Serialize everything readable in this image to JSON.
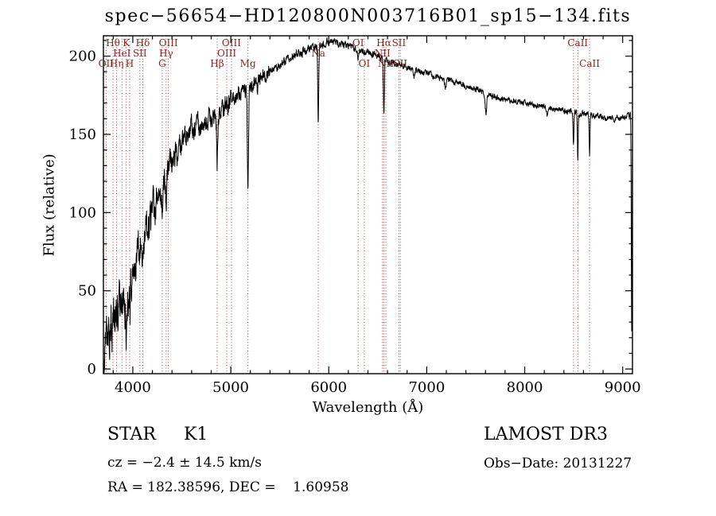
{
  "chart_data": {
    "type": "line",
    "title": "spec−56654−HD120800N003716B01_sp15−134.fits",
    "xlabel": "Wavelength (Å)",
    "ylabel": "Flux (relative)",
    "xlim": [
      3700,
      9100
    ],
    "ylim": [
      -3,
      213
    ],
    "xticks": [
      4000,
      5000,
      6000,
      7000,
      8000,
      9000
    ],
    "yticks": [
      0,
      50,
      100,
      150,
      200
    ],
    "x_minor_step": 200,
    "y_minor_step": 10,
    "grid": false,
    "legend": "none",
    "series_color": "#000000",
    "marker_color": "#a04040",
    "label_color": "#8b2323",
    "envelope": [
      [
        3700,
        6
      ],
      [
        3720,
        14
      ],
      [
        3740,
        22
      ],
      [
        3760,
        20
      ],
      [
        3780,
        26
      ],
      [
        3800,
        30
      ],
      [
        3820,
        34
      ],
      [
        3840,
        38
      ],
      [
        3860,
        40
      ],
      [
        3880,
        43
      ],
      [
        3900,
        47
      ],
      [
        3920,
        46
      ],
      [
        3950,
        44
      ],
      [
        3980,
        52
      ],
      [
        4000,
        62
      ],
      [
        4020,
        68
      ],
      [
        4040,
        72
      ],
      [
        4060,
        76
      ],
      [
        4080,
        79
      ],
      [
        4100,
        83
      ],
      [
        4130,
        88
      ],
      [
        4160,
        93
      ],
      [
        4200,
        99
      ],
      [
        4240,
        107
      ],
      [
        4280,
        114
      ],
      [
        4320,
        120
      ],
      [
        4360,
        127
      ],
      [
        4400,
        134
      ],
      [
        4440,
        139
      ],
      [
        4480,
        143
      ],
      [
        4520,
        147
      ],
      [
        4560,
        150
      ],
      [
        4600,
        152
      ],
      [
        4650,
        154
      ],
      [
        4700,
        156
      ],
      [
        4750,
        158
      ],
      [
        4800,
        161
      ],
      [
        4850,
        160
      ],
      [
        4900,
        164
      ],
      [
        4950,
        168
      ],
      [
        5000,
        171
      ],
      [
        5050,
        174
      ],
      [
        5100,
        176
      ],
      [
        5150,
        178
      ],
      [
        5200,
        180
      ],
      [
        5250,
        183
      ],
      [
        5300,
        186
      ],
      [
        5350,
        188
      ],
      [
        5400,
        190
      ],
      [
        5450,
        192
      ],
      [
        5500,
        194
      ],
      [
        5550,
        196
      ],
      [
        5600,
        198
      ],
      [
        5650,
        200
      ],
      [
        5700,
        202
      ],
      [
        5750,
        203
      ],
      [
        5800,
        205
      ],
      [
        5850,
        206
      ],
      [
        5900,
        207
      ],
      [
        5950,
        208
      ],
      [
        6000,
        209
      ],
      [
        6050,
        209
      ],
      [
        6100,
        208
      ],
      [
        6150,
        207
      ],
      [
        6200,
        206
      ],
      [
        6250,
        205
      ],
      [
        6300,
        204
      ],
      [
        6350,
        203
      ],
      [
        6400,
        202
      ],
      [
        6450,
        201
      ],
      [
        6500,
        200
      ],
      [
        6550,
        199
      ],
      [
        6600,
        197
      ],
      [
        6650,
        196
      ],
      [
        6700,
        195
      ],
      [
        6750,
        194
      ],
      [
        6800,
        193
      ],
      [
        6900,
        191
      ],
      [
        7000,
        189
      ],
      [
        7100,
        187
      ],
      [
        7200,
        185
      ],
      [
        7300,
        183
      ],
      [
        7400,
        181
      ],
      [
        7500,
        179
      ],
      [
        7600,
        176
      ],
      [
        7700,
        174
      ],
      [
        7800,
        172
      ],
      [
        7900,
        171
      ],
      [
        8000,
        170
      ],
      [
        8100,
        169
      ],
      [
        8200,
        168
      ],
      [
        8300,
        166
      ],
      [
        8400,
        165
      ],
      [
        8500,
        164
      ],
      [
        8600,
        163
      ],
      [
        8700,
        162
      ],
      [
        8800,
        161
      ],
      [
        8900,
        160
      ],
      [
        9000,
        161
      ],
      [
        9100,
        163
      ]
    ],
    "absorption_features": [
      {
        "center": 3933,
        "depth": 16,
        "sigma": 7
      },
      {
        "center": 3968,
        "depth": 14,
        "sigma": 7
      },
      {
        "center": 4102,
        "depth": 20,
        "sigma": 6
      },
      {
        "center": 4227,
        "depth": 8,
        "sigma": 4
      },
      {
        "center": 4300,
        "depth": 10,
        "sigma": 7
      },
      {
        "center": 4340,
        "depth": 16,
        "sigma": 5
      },
      {
        "center": 4861,
        "depth": 32,
        "sigma": 5
      },
      {
        "center": 5175,
        "depth": 62,
        "sigma": 6
      },
      {
        "center": 5270,
        "depth": 10,
        "sigma": 5
      },
      {
        "center": 5893,
        "depth": 48,
        "sigma": 5
      },
      {
        "center": 6300,
        "depth": 5,
        "sigma": 4
      },
      {
        "center": 6563,
        "depth": 36,
        "sigma": 5
      },
      {
        "center": 6870,
        "depth": 6,
        "sigma": 7
      },
      {
        "center": 7190,
        "depth": 5,
        "sigma": 8
      },
      {
        "center": 7605,
        "depth": 12,
        "sigma": 8
      },
      {
        "center": 8230,
        "depth": 6,
        "sigma": 6
      },
      {
        "center": 8498,
        "depth": 22,
        "sigma": 4
      },
      {
        "center": 8542,
        "depth": 30,
        "sigma": 4
      },
      {
        "center": 8662,
        "depth": 26,
        "sigma": 4
      },
      {
        "center": 9092,
        "depth": 138,
        "sigma": 4
      }
    ],
    "noise_segments": [
      {
        "from": 3700,
        "to": 3980,
        "amp": 15
      },
      {
        "from": 3980,
        "to": 4250,
        "amp": 11
      },
      {
        "from": 4250,
        "to": 4600,
        "amp": 8.5
      },
      {
        "from": 4600,
        "to": 5000,
        "amp": 6.5
      },
      {
        "from": 5000,
        "to": 5400,
        "amp": 4.5
      },
      {
        "from": 5400,
        "to": 6000,
        "amp": 2.4
      },
      {
        "from": 6000,
        "to": 6800,
        "amp": 2.0
      },
      {
        "from": 6800,
        "to": 9100,
        "amp": 1.7
      }
    ],
    "spectral_lines": [
      3727,
      3798,
      3835,
      3889,
      3933,
      3968,
      4072,
      4102,
      4300,
      4340,
      4363,
      4861,
      4959,
      5007,
      5175,
      5893,
      6300,
      6363,
      6548,
      6563,
      6583,
      6716,
      6731,
      8498,
      8542,
      8662
    ],
    "spectral_labels": [
      {
        "text": "Hθ",
        "wavelength": 3798,
        "row": 0
      },
      {
        "text": "K",
        "wavelength": 3933,
        "row": 0
      },
      {
        "text": "Hδ",
        "wavelength": 4102,
        "row": 0
      },
      {
        "text": "OIII",
        "wavelength": 4363,
        "row": 0
      },
      {
        "text": "OIII",
        "wavelength": 5007,
        "row": 0
      },
      {
        "text": "OI",
        "wavelength": 6300,
        "row": 0
      },
      {
        "text": "Hα",
        "wavelength": 6563,
        "row": 0
      },
      {
        "text": "SII",
        "wavelength": 6716,
        "row": 0
      },
      {
        "text": "CaII",
        "wavelength": 8542,
        "row": 0
      },
      {
        "text": "HeI",
        "wavelength": 3889,
        "row": 1
      },
      {
        "text": "SII",
        "wavelength": 4072,
        "row": 1
      },
      {
        "text": "Hγ",
        "wavelength": 4340,
        "row": 1
      },
      {
        "text": "OIII",
        "wavelength": 4959,
        "row": 1
      },
      {
        "text": "Na",
        "wavelength": 5893,
        "row": 1
      },
      {
        "text": "NII",
        "wavelength": 6548,
        "row": 1
      },
      {
        "text": "OII",
        "wavelength": 3727,
        "row": 2
      },
      {
        "text": "Hη",
        "wavelength": 3835,
        "row": 2
      },
      {
        "text": "H",
        "wavelength": 3968,
        "row": 2
      },
      {
        "text": "G",
        "wavelength": 4300,
        "row": 2
      },
      {
        "text": "Hβ",
        "wavelength": 4861,
        "row": 2
      },
      {
        "text": "Mg",
        "wavelength": 5175,
        "row": 2
      },
      {
        "text": "OI",
        "wavelength": 6363,
        "row": 2
      },
      {
        "text": "NII",
        "wavelength": 6583,
        "row": 2
      },
      {
        "text": "SII",
        "wavelength": 6731,
        "row": 2
      },
      {
        "text": "CaII",
        "wavelength": 8662,
        "row": 2
      }
    ]
  },
  "footer": {
    "class_label": "STAR     K1",
    "survey": "LAMOST DR3",
    "cz": "cz = −2.4 ± 14.5 km/s",
    "obs_date": "Obs−Date: 20131227",
    "ra_dec": "RA = 182.38596, DEC =    1.60958"
  }
}
